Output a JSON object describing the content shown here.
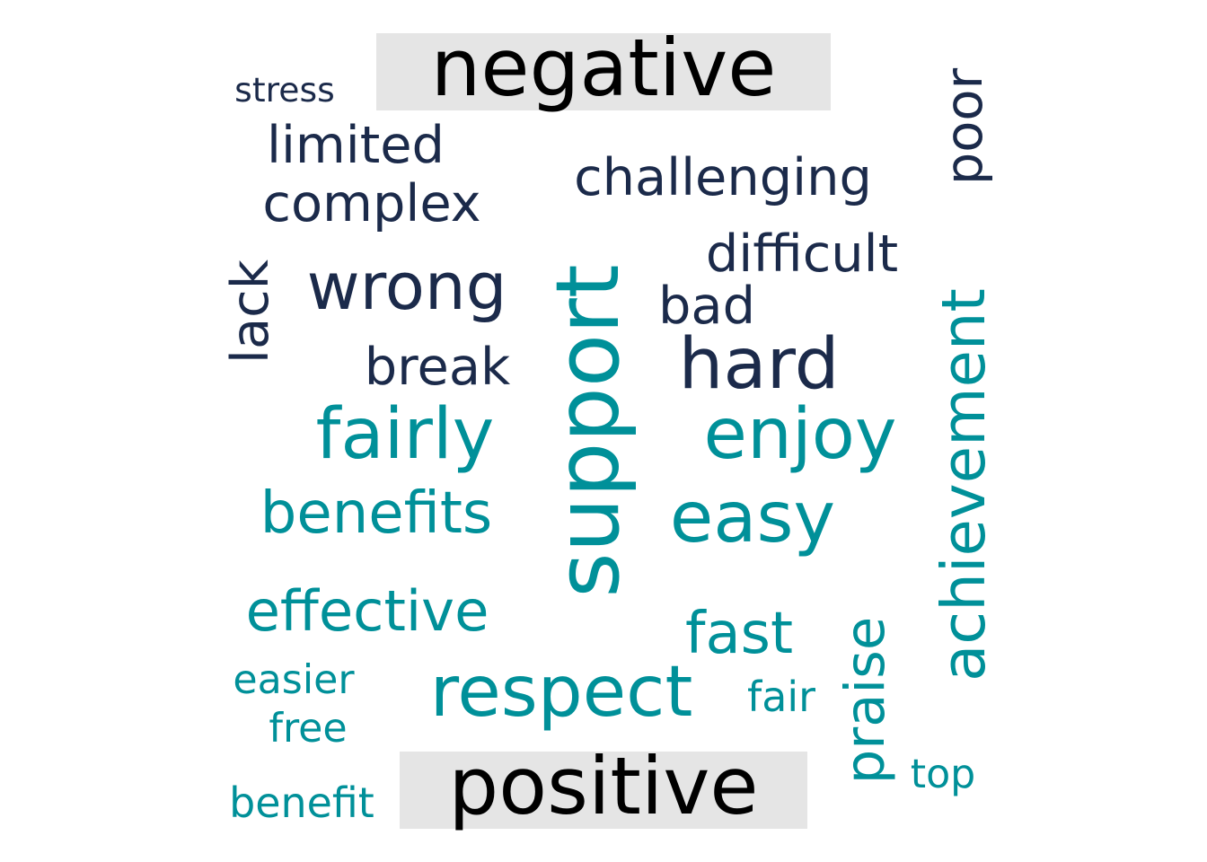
{
  "chart_data": {
    "type": "wordcloud",
    "groups": [
      {
        "label": "negative",
        "color": "#1b2a4a",
        "label_bg": "#e5e5e5",
        "words": [
          {
            "text": "stress",
            "weight": 46
          },
          {
            "text": "limited",
            "weight": 70
          },
          {
            "text": "complex",
            "weight": 70
          },
          {
            "text": "challenging",
            "weight": 70
          },
          {
            "text": "poor",
            "weight": 70
          },
          {
            "text": "difficult",
            "weight": 70
          },
          {
            "text": "lack",
            "weight": 70
          },
          {
            "text": "wrong",
            "weight": 88
          },
          {
            "text": "bad",
            "weight": 70
          },
          {
            "text": "break",
            "weight": 70
          },
          {
            "text": "hard",
            "weight": 96
          }
        ]
      },
      {
        "label": "positive",
        "color": "#009099",
        "label_bg": "#e5e5e5",
        "words": [
          {
            "text": "support",
            "weight": 118
          },
          {
            "text": "fairly",
            "weight": 96
          },
          {
            "text": "enjoy",
            "weight": 96
          },
          {
            "text": "achievement",
            "weight": 82
          },
          {
            "text": "benefits",
            "weight": 78
          },
          {
            "text": "easy",
            "weight": 96
          },
          {
            "text": "effective",
            "weight": 76
          },
          {
            "text": "fast",
            "weight": 78
          },
          {
            "text": "praise",
            "weight": 74
          },
          {
            "text": "easier",
            "weight": 54
          },
          {
            "text": "respect",
            "weight": 96
          },
          {
            "text": "fair",
            "weight": 56
          },
          {
            "text": "free",
            "weight": 54
          },
          {
            "text": "top",
            "weight": 54
          },
          {
            "text": "benefit",
            "weight": 56
          }
        ]
      }
    ]
  }
}
